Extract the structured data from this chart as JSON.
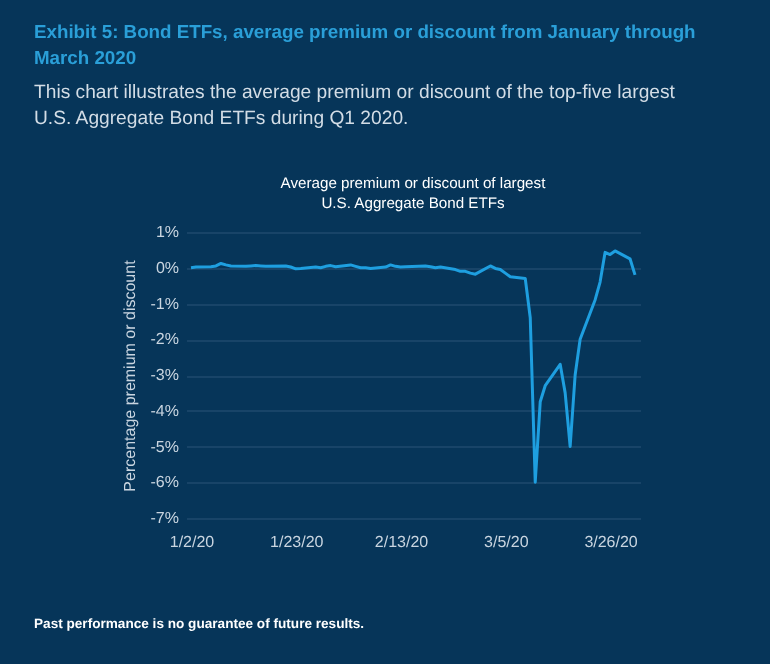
{
  "chart_data": {
    "type": "line",
    "title": "Exhibit 5: Bond ETFs, average premium or discount from January through March 2020",
    "subtitle": "This chart illustrates the average premium or discount of the top-five largest U.S. Aggregate Bond ETFs during Q1 2020.",
    "ylabel": "Percentage premium or discount",
    "annotations": [
      "Average premium or discount of largest U.S. Aggregate Bond ETFs",
      "Past performance is no guarantee of future results."
    ],
    "x": [
      "2020-01-02",
      "2020-01-03",
      "2020-01-06",
      "2020-01-07",
      "2020-01-08",
      "2020-01-09",
      "2020-01-10",
      "2020-01-13",
      "2020-01-14",
      "2020-01-15",
      "2020-01-16",
      "2020-01-17",
      "2020-01-21",
      "2020-01-22",
      "2020-01-23",
      "2020-01-24",
      "2020-01-27",
      "2020-01-28",
      "2020-01-29",
      "2020-01-30",
      "2020-01-31",
      "2020-02-03",
      "2020-02-04",
      "2020-02-05",
      "2020-02-06",
      "2020-02-07",
      "2020-02-10",
      "2020-02-11",
      "2020-02-12",
      "2020-02-13",
      "2020-02-14",
      "2020-02-18",
      "2020-02-19",
      "2020-02-20",
      "2020-02-21",
      "2020-02-24",
      "2020-02-25",
      "2020-02-26",
      "2020-02-27",
      "2020-02-28",
      "2020-03-02",
      "2020-03-03",
      "2020-03-04",
      "2020-03-05",
      "2020-03-06",
      "2020-03-09",
      "2020-03-10",
      "2020-03-11",
      "2020-03-12",
      "2020-03-13",
      "2020-03-16",
      "2020-03-17",
      "2020-03-18",
      "2020-03-19",
      "2020-03-20",
      "2020-03-23",
      "2020-03-24",
      "2020-03-25",
      "2020-03-26",
      "2020-03-27",
      "2020-03-30",
      "2020-03-31"
    ],
    "series": [
      {
        "color": "#1e9fe0",
        "values": [
          0.0,
          0.02,
          0.03,
          0.05,
          0.12,
          0.08,
          0.05,
          0.04,
          0.05,
          0.06,
          0.05,
          0.04,
          0.05,
          0.02,
          -0.03,
          -0.02,
          0.02,
          0.0,
          0.04,
          0.06,
          0.03,
          0.08,
          0.04,
          0.0,
          0.0,
          -0.02,
          0.02,
          0.08,
          0.04,
          0.02,
          0.03,
          0.05,
          0.03,
          0.0,
          0.02,
          -0.05,
          -0.1,
          -0.1,
          -0.15,
          -0.18,
          0.05,
          -0.02,
          -0.05,
          -0.15,
          -0.25,
          -0.3,
          -1.4,
          -6.0,
          -3.75,
          -3.3,
          -2.7,
          -3.5,
          -5.0,
          -3.0,
          -2.0,
          -0.9,
          -0.4,
          0.43,
          0.37,
          0.47,
          0.25,
          -0.2
        ]
      }
    ],
    "xlim": [
      "2020-01-01",
      "2020-04-01"
    ],
    "xticks": [
      {
        "value": "2020-01-02",
        "label": "1/2/20"
      },
      {
        "value": "2020-01-23",
        "label": "1/23/20"
      },
      {
        "value": "2020-02-13",
        "label": "2/13/20"
      },
      {
        "value": "2020-03-05",
        "label": "3/5/20"
      },
      {
        "value": "2020-03-26",
        "label": "3/26/20"
      }
    ],
    "ylim": [
      -7,
      1
    ],
    "yticks": [
      {
        "value": 1,
        "label": "1%"
      },
      {
        "value": 0,
        "label": "0%"
      },
      {
        "value": -1,
        "label": "-1%"
      },
      {
        "value": -2,
        "label": "-2%"
      },
      {
        "value": -3,
        "label": "-3%"
      },
      {
        "value": -4,
        "label": "-4%"
      },
      {
        "value": -5,
        "label": "-5%"
      },
      {
        "value": -6,
        "label": "-6%"
      },
      {
        "value": -7,
        "label": "-7%"
      }
    ],
    "grid": "y",
    "marker": "none",
    "line_style": "solid"
  }
}
